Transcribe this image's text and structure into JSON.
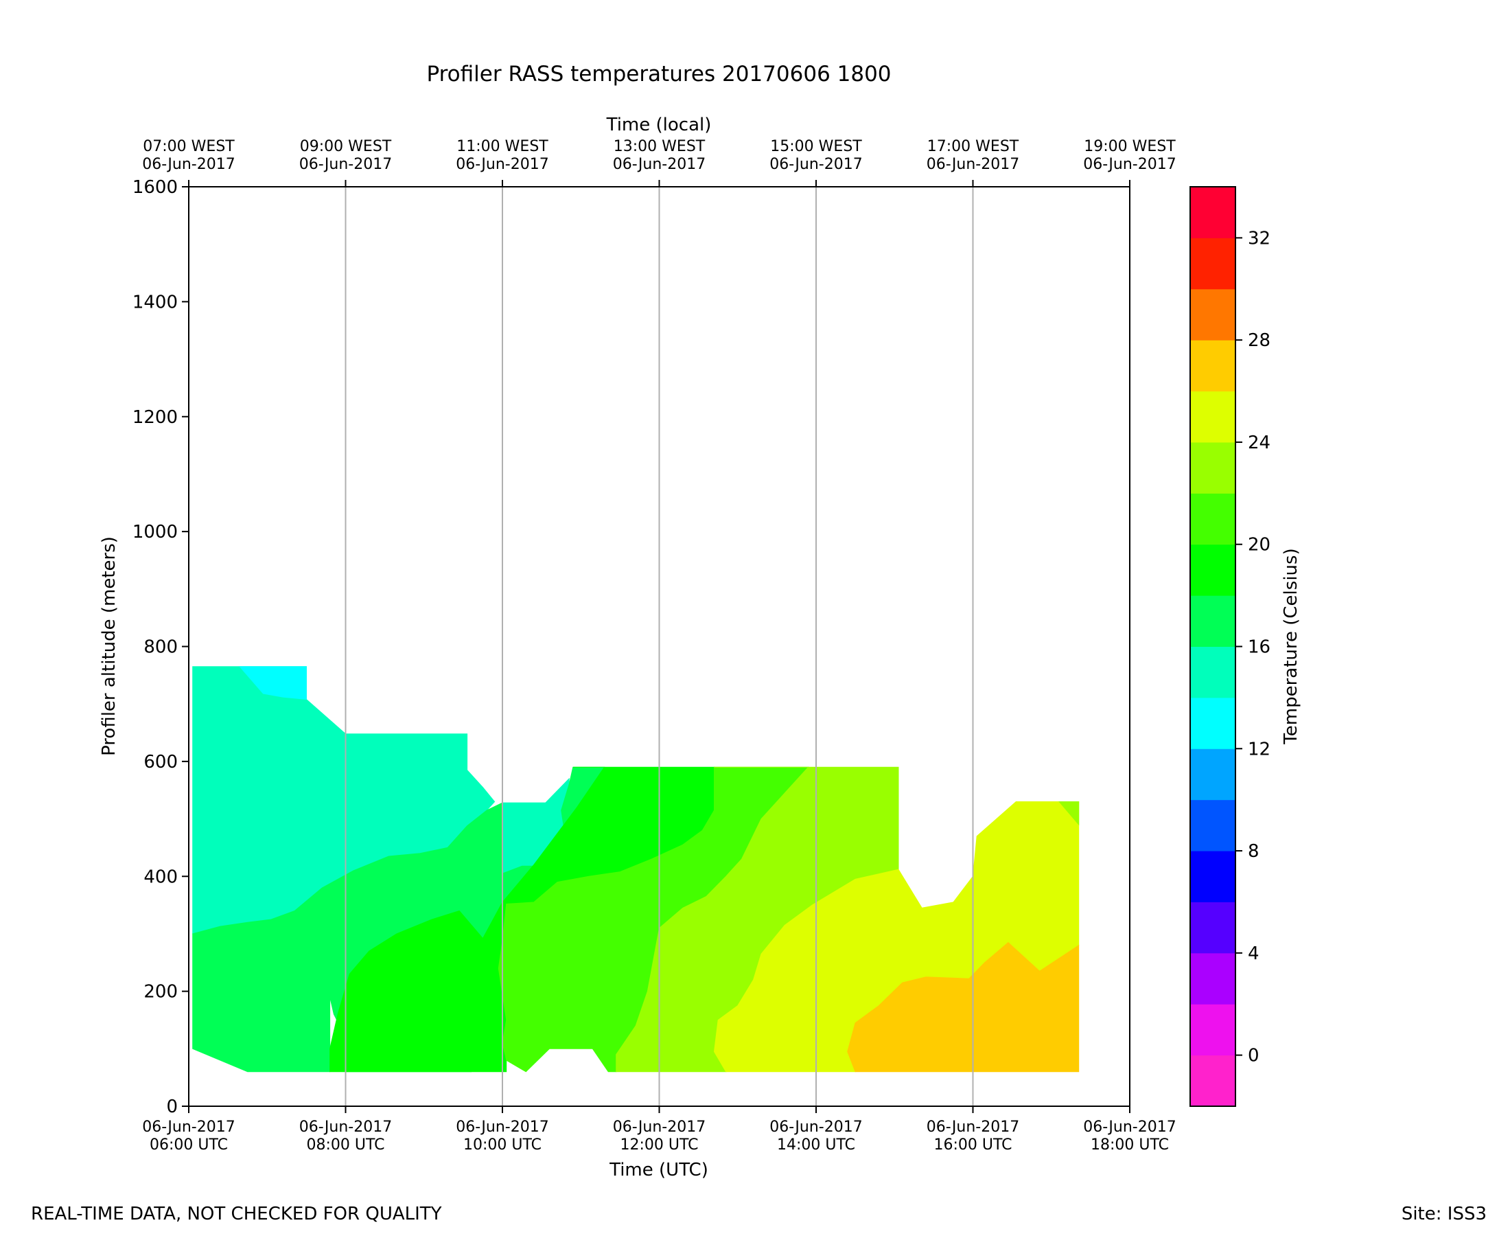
{
  "chart_data": {
    "type": "heatmap",
    "subtype": "filled-contour",
    "title": "Profiler RASS temperatures 20170606 1800",
    "xlabel": "Time (UTC)",
    "xlabel_top": "Time (local)",
    "ylabel": "Profiler altitude (meters)",
    "colorbar_label": "Temperature (Celsius)",
    "xlim_hours_utc": [
      6,
      18
    ],
    "ylim": [
      0,
      1600
    ],
    "grid": "vertical-major-x",
    "x_ticks": [
      {
        "hour": 6,
        "date": "06-Jun-2017",
        "utc": "06:00 UTC",
        "local": "07:00 WEST"
      },
      {
        "hour": 8,
        "date": "06-Jun-2017",
        "utc": "08:00 UTC",
        "local": "09:00 WEST"
      },
      {
        "hour": 10,
        "date": "06-Jun-2017",
        "utc": "10:00 UTC",
        "local": "11:00 WEST"
      },
      {
        "hour": 12,
        "date": "06-Jun-2017",
        "utc": "12:00 UTC",
        "local": "13:00 WEST"
      },
      {
        "hour": 14,
        "date": "06-Jun-2017",
        "utc": "14:00 UTC",
        "local": "15:00 WEST"
      },
      {
        "hour": 16,
        "date": "06-Jun-2017",
        "utc": "16:00 UTC",
        "local": "17:00 WEST"
      },
      {
        "hour": 18,
        "date": "06-Jun-2017",
        "utc": "18:00 UTC",
        "local": "19:00 WEST"
      }
    ],
    "y_ticks": [
      0,
      200,
      400,
      600,
      800,
      1000,
      1200,
      1400,
      1600
    ],
    "colorbar": {
      "min": -2,
      "max": 34,
      "step": 2,
      "tick_labels": [
        "0",
        "4",
        "8",
        "12",
        "16",
        "20",
        "24",
        "28",
        "32"
      ],
      "tick_values": [
        0,
        4,
        8,
        12,
        16,
        20,
        24,
        28,
        32
      ],
      "colors": [
        "#ff22cc",
        "#ee11ee",
        "#aa00ff",
        "#5500ff",
        "#0000ff",
        "#0055ff",
        "#00a5ff",
        "#00ffff",
        "#00ffbb",
        "#00ff55",
        "#00ff00",
        "#44ff00",
        "#99ff00",
        "#ddff00",
        "#ffcc00",
        "#ff7700",
        "#ff2200",
        "#ff0033"
      ]
    },
    "fields": [
      {
        "band": "14-16",
        "color": "#00ffbb",
        "points": [
          [
            6.05,
            765
          ],
          [
            7.5,
            765
          ],
          [
            7.5,
            708
          ],
          [
            8.0,
            648
          ],
          [
            9.55,
            648
          ],
          [
            9.55,
            585
          ],
          [
            9.75,
            555
          ],
          [
            9.9,
            530
          ],
          [
            9.8,
            515
          ],
          [
            9.55,
            488
          ],
          [
            9.3,
            450
          ],
          [
            8.95,
            440
          ],
          [
            8.55,
            435
          ],
          [
            8.1,
            410
          ],
          [
            7.7,
            380
          ],
          [
            7.35,
            340
          ],
          [
            7.05,
            325
          ],
          [
            6.75,
            320
          ],
          [
            6.4,
            313
          ],
          [
            6.05,
            300
          ]
        ]
      },
      {
        "band": "12-14",
        "color": "#00ffff",
        "points": [
          [
            6.65,
            765
          ],
          [
            7.5,
            765
          ],
          [
            7.5,
            708
          ],
          [
            7.2,
            712
          ],
          [
            6.95,
            718
          ]
        ]
      },
      {
        "band": "14-16",
        "color": "#00ffbb",
        "points": [
          [
            10.0,
            528
          ],
          [
            10.55,
            528
          ],
          [
            10.85,
            570
          ],
          [
            10.85,
            560
          ],
          [
            10.75,
            515
          ],
          [
            10.8,
            470
          ],
          [
            10.65,
            418
          ],
          [
            10.25,
            418
          ],
          [
            10.0,
            405
          ]
        ]
      },
      {
        "band": "16-18",
        "color": "#00ff55",
        "points": [
          [
            6.05,
            300
          ],
          [
            6.4,
            313
          ],
          [
            6.75,
            320
          ],
          [
            7.05,
            325
          ],
          [
            7.35,
            340
          ],
          [
            7.7,
            380
          ],
          [
            8.1,
            410
          ],
          [
            8.55,
            435
          ],
          [
            8.95,
            440
          ],
          [
            9.3,
            450
          ],
          [
            9.55,
            488
          ],
          [
            9.8,
            515
          ],
          [
            10.0,
            528
          ],
          [
            10.0,
            405
          ],
          [
            10.25,
            418
          ],
          [
            10.65,
            418
          ],
          [
            10.8,
            470
          ],
          [
            10.75,
            515
          ],
          [
            10.85,
            560
          ],
          [
            10.9,
            590
          ],
          [
            11.3,
            590
          ],
          [
            10.95,
            520
          ],
          [
            10.4,
            420
          ],
          [
            10.0,
            355
          ],
          [
            9.75,
            292
          ],
          [
            9.6,
            60
          ],
          [
            8.0,
            60
          ],
          [
            8.0,
            120
          ],
          [
            7.85,
            160
          ],
          [
            7.8,
            190
          ],
          [
            7.8,
            60
          ],
          [
            6.75,
            60
          ],
          [
            6.05,
            100
          ]
        ]
      },
      {
        "band": "18-20",
        "color": "#00ff00",
        "points": [
          [
            10.9,
            590
          ],
          [
            12.7,
            590
          ],
          [
            12.7,
            515
          ],
          [
            12.55,
            480
          ],
          [
            12.3,
            455
          ],
          [
            11.9,
            430
          ],
          [
            11.5,
            408
          ],
          [
            11.1,
            400
          ],
          [
            10.7,
            390
          ],
          [
            10.4,
            355
          ],
          [
            10.05,
            352
          ],
          [
            10.0,
            288
          ],
          [
            9.95,
            240
          ],
          [
            10.05,
            150
          ],
          [
            10.0,
            110
          ],
          [
            10.05,
            80
          ],
          [
            10.05,
            60
          ],
          [
            9.6,
            60
          ],
          [
            9.75,
            292
          ],
          [
            10.0,
            355
          ],
          [
            10.4,
            420
          ],
          [
            10.95,
            520
          ],
          [
            11.3,
            590
          ]
        ]
      },
      {
        "band": "18-20",
        "color": "#00ff00",
        "points": [
          [
            7.8,
            60
          ],
          [
            9.6,
            60
          ],
          [
            9.75,
            292
          ],
          [
            9.45,
            340
          ],
          [
            9.1,
            325
          ],
          [
            8.65,
            300
          ],
          [
            8.3,
            270
          ],
          [
            8.05,
            230
          ],
          [
            7.9,
            160
          ],
          [
            7.8,
            100
          ]
        ]
      },
      {
        "band": "20-22",
        "color": "#44ff00",
        "points": [
          [
            10.05,
            352
          ],
          [
            10.4,
            355
          ],
          [
            10.7,
            390
          ],
          [
            11.1,
            400
          ],
          [
            11.5,
            408
          ],
          [
            11.9,
            430
          ],
          [
            12.3,
            455
          ],
          [
            12.55,
            480
          ],
          [
            12.7,
            515
          ],
          [
            12.7,
            590
          ],
          [
            13.9,
            590
          ],
          [
            13.6,
            545
          ],
          [
            13.3,
            500
          ],
          [
            13.05,
            430
          ],
          [
            12.85,
            400
          ],
          [
            12.6,
            365
          ],
          [
            12.3,
            345
          ],
          [
            12.0,
            310
          ],
          [
            11.85,
            200
          ],
          [
            11.7,
            140
          ],
          [
            11.45,
            90
          ],
          [
            11.45,
            60
          ],
          [
            11.35,
            60
          ],
          [
            11.15,
            100
          ],
          [
            10.6,
            100
          ],
          [
            10.3,
            60
          ],
          [
            10.05,
            80
          ],
          [
            10.0,
            110
          ],
          [
            10.05,
            150
          ],
          [
            9.95,
            240
          ],
          [
            10.0,
            288
          ]
        ]
      },
      {
        "band": "22-24",
        "color": "#99ff00",
        "points": [
          [
            11.45,
            60
          ],
          [
            12.85,
            60
          ],
          [
            12.7,
            95
          ],
          [
            12.75,
            150
          ],
          [
            13.0,
            175
          ],
          [
            13.2,
            220
          ],
          [
            13.3,
            265
          ],
          [
            13.6,
            315
          ],
          [
            13.95,
            350
          ],
          [
            14.5,
            395
          ],
          [
            15.05,
            412
          ],
          [
            15.05,
            590
          ],
          [
            12.7,
            590
          ],
          [
            13.9,
            590
          ],
          [
            13.6,
            545
          ],
          [
            13.3,
            500
          ],
          [
            13.05,
            430
          ],
          [
            12.85,
            400
          ],
          [
            12.6,
            365
          ],
          [
            12.3,
            345
          ],
          [
            12.0,
            310
          ],
          [
            11.85,
            200
          ],
          [
            11.7,
            140
          ],
          [
            11.45,
            90
          ]
        ]
      },
      {
        "band": "24-26",
        "color": "#ddff00",
        "points": [
          [
            12.85,
            60
          ],
          [
            14.5,
            60
          ],
          [
            14.4,
            95
          ],
          [
            14.5,
            145
          ],
          [
            14.8,
            175
          ],
          [
            15.1,
            215
          ],
          [
            15.4,
            225
          ],
          [
            15.95,
            222
          ],
          [
            16.15,
            250
          ],
          [
            16.45,
            285
          ],
          [
            16.85,
            235
          ],
          [
            17.35,
            280
          ],
          [
            17.35,
            490
          ],
          [
            17.35,
            530
          ],
          [
            16.55,
            530
          ],
          [
            16.05,
            470
          ],
          [
            16.0,
            400
          ],
          [
            15.75,
            355
          ],
          [
            15.35,
            345
          ],
          [
            15.05,
            412
          ],
          [
            14.5,
            395
          ],
          [
            13.95,
            350
          ],
          [
            13.6,
            315
          ],
          [
            13.3,
            265
          ],
          [
            13.2,
            220
          ],
          [
            13.0,
            175
          ],
          [
            12.75,
            150
          ],
          [
            12.7,
            95
          ]
        ]
      },
      {
        "band": "22-24",
        "color": "#99ff00",
        "points": [
          [
            17.1,
            530
          ],
          [
            17.35,
            530
          ],
          [
            17.35,
            490
          ]
        ]
      },
      {
        "band": "26-28",
        "color": "#ffcc00",
        "points": [
          [
            14.5,
            60
          ],
          [
            17.35,
            60
          ],
          [
            17.35,
            280
          ],
          [
            16.85,
            235
          ],
          [
            16.45,
            285
          ],
          [
            16.15,
            250
          ],
          [
            15.95,
            222
          ],
          [
            15.4,
            225
          ],
          [
            15.1,
            215
          ],
          [
            14.8,
            175
          ],
          [
            14.5,
            145
          ],
          [
            14.4,
            95
          ]
        ]
      }
    ]
  },
  "footer": {
    "left_note": "REAL-TIME DATA, NOT CHECKED FOR QUALITY",
    "right_note": "Site: ISS3"
  }
}
